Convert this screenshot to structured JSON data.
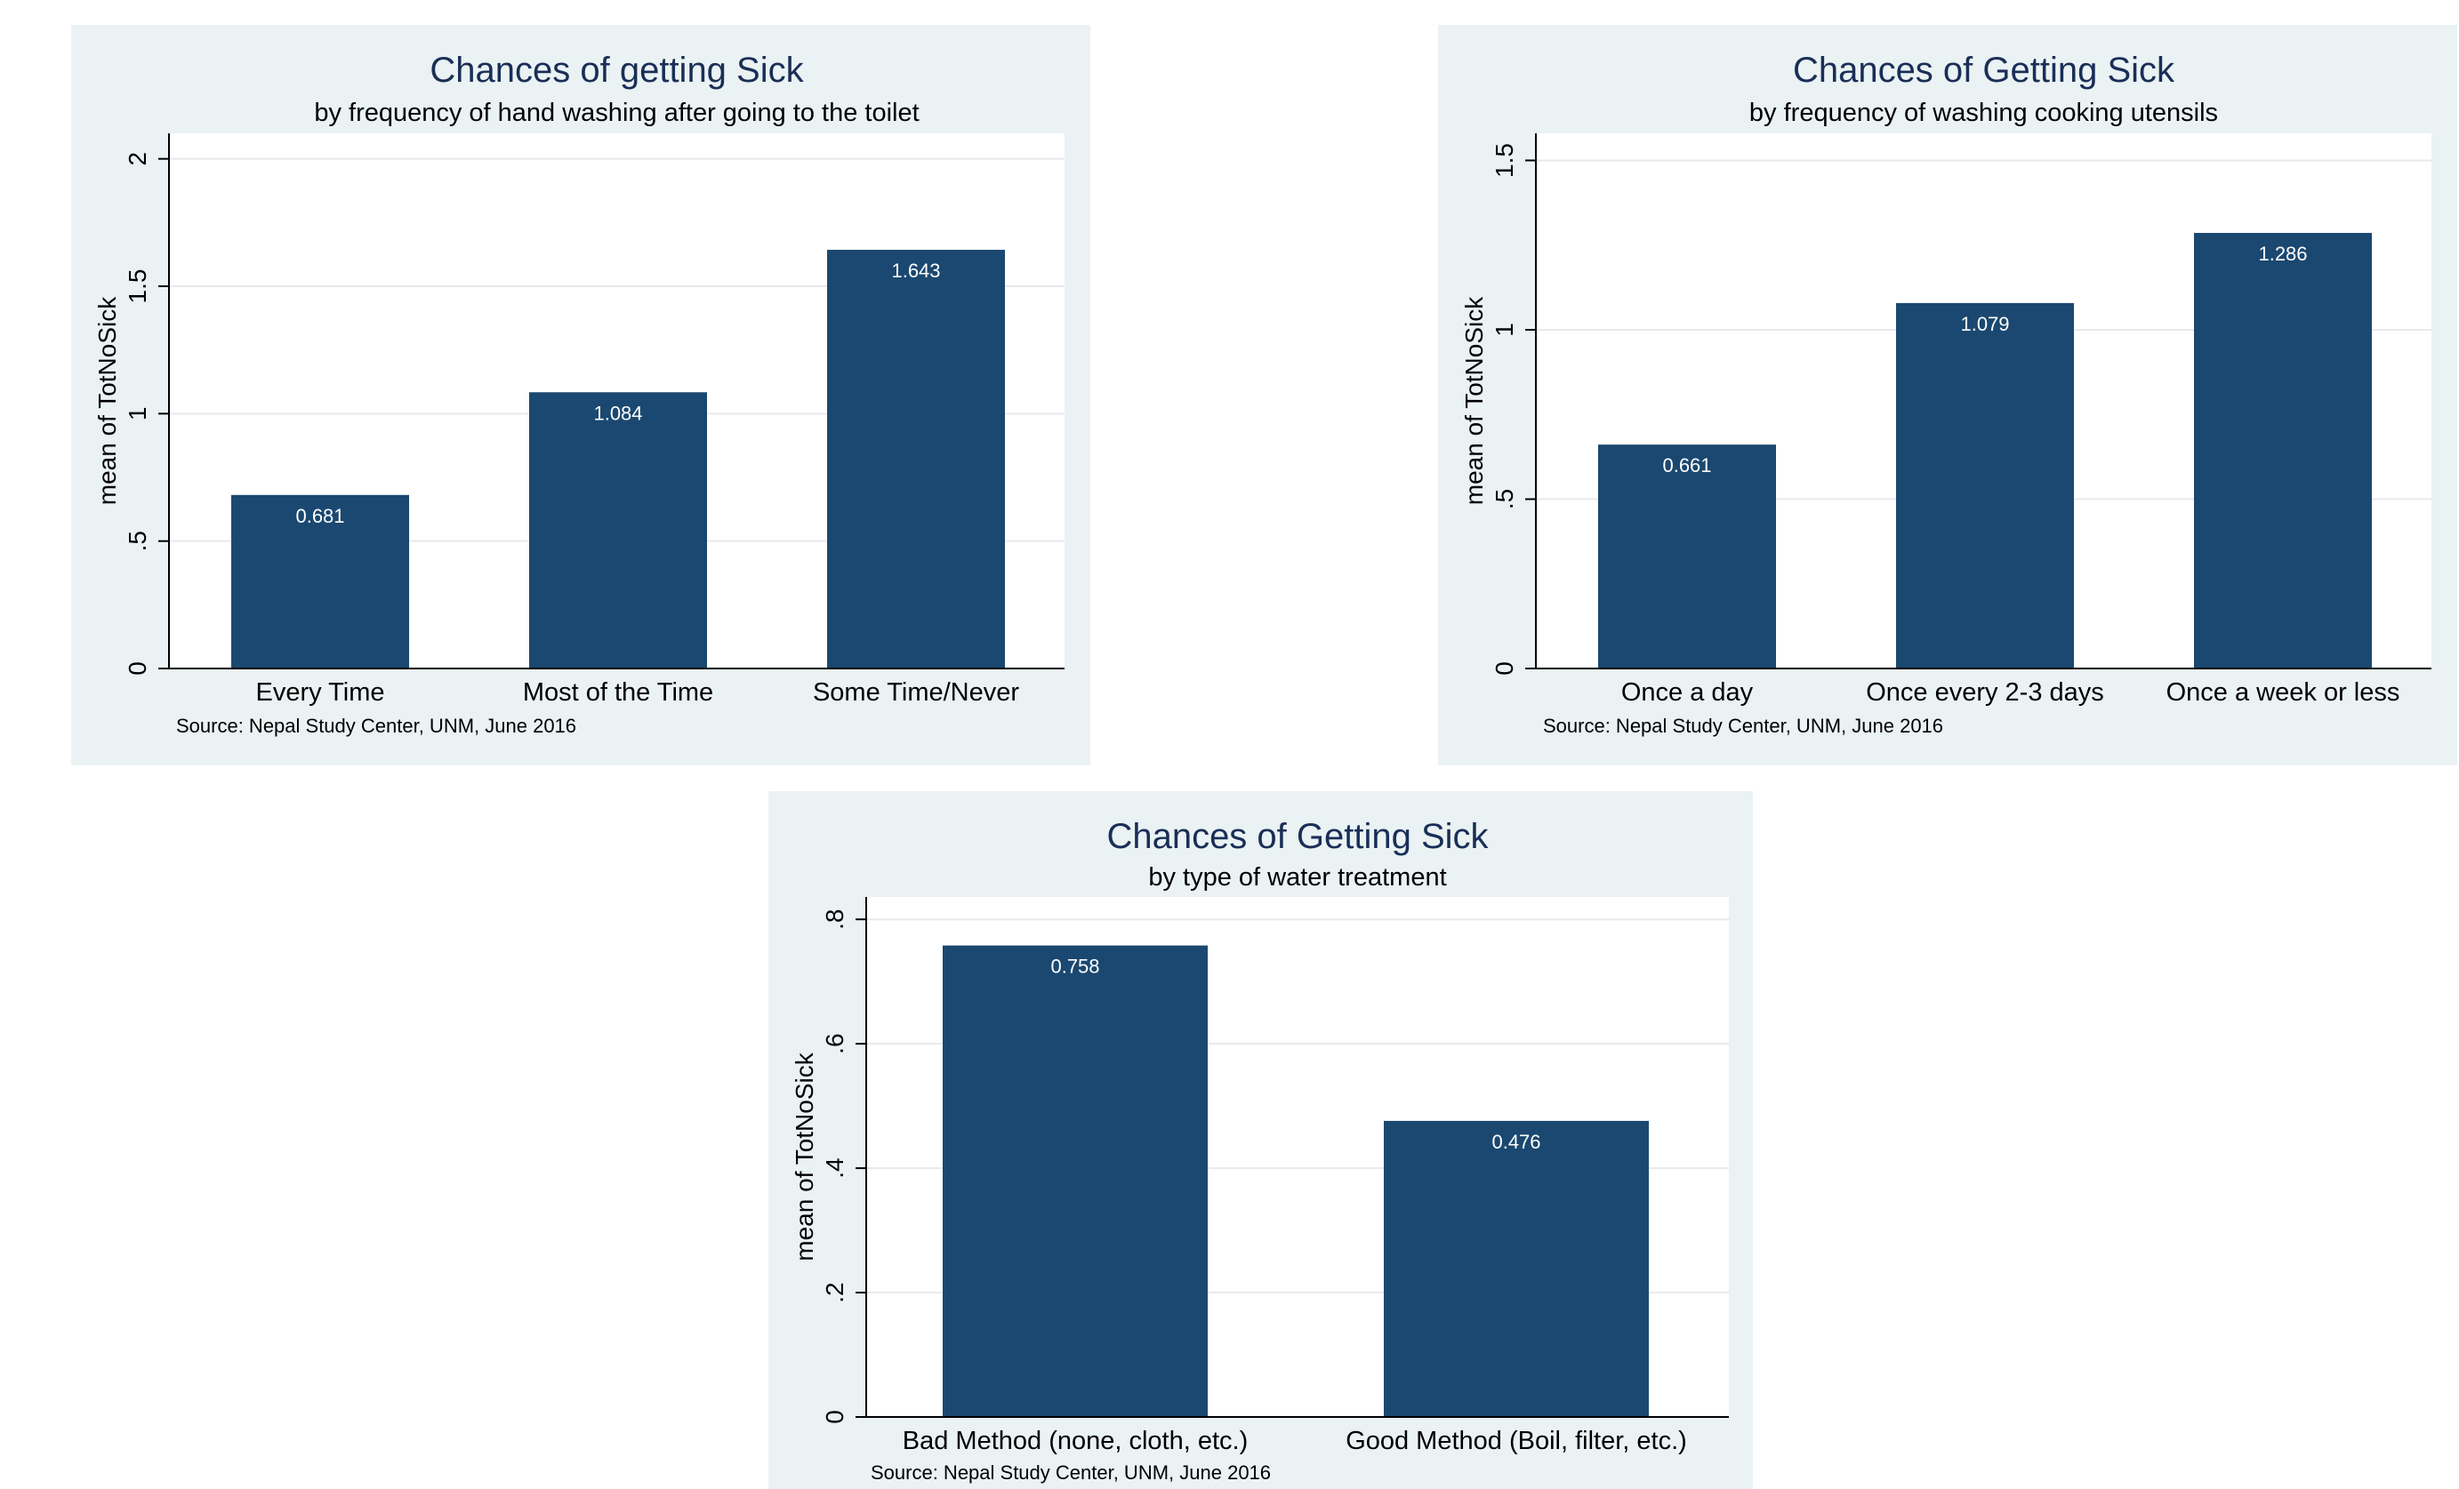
{
  "colors": {
    "panel_background": "#eaf2f3",
    "plot_background": "#ffffff",
    "bar": "#1b4870",
    "gridline": "#e6eaee",
    "title": "#1a2e57",
    "value_label": "#ffffff"
  },
  "chart_data": [
    {
      "type": "bar",
      "title": "Chances of getting Sick",
      "subtitle": "by frequency of hand washing after going to the toilet",
      "xlabel": "",
      "ylabel": "mean of TotNoSick",
      "categories": [
        "Every Time",
        "Most of the Time",
        "Some Time/Never"
      ],
      "values": [
        0.681,
        1.084,
        1.643
      ],
      "value_labels": [
        "0.681",
        "1.084",
        "1.643"
      ],
      "ylim": [
        0,
        2.1
      ],
      "yticks": [
        0,
        0.5,
        1,
        1.5,
        2
      ],
      "ytick_labels": [
        "0",
        ".5",
        "1",
        "1.5",
        "2"
      ],
      "grid": true,
      "note": "Source: Nepal Study Center, UNM, June 2016"
    },
    {
      "type": "bar",
      "title": "Chances of Getting Sick",
      "subtitle": "by frequency of washing cooking utensils",
      "xlabel": "",
      "ylabel": "mean of TotNoSick",
      "categories": [
        "Once a day",
        "Once every 2-3 days",
        "Once a week or less"
      ],
      "values": [
        0.661,
        1.079,
        1.286
      ],
      "value_labels": [
        "0.661",
        "1.079",
        "1.286"
      ],
      "ylim": [
        0,
        1.58
      ],
      "yticks": [
        0,
        0.5,
        1,
        1.5
      ],
      "ytick_labels": [
        "0",
        ".5",
        "1",
        "1.5"
      ],
      "grid": true,
      "note": "Source: Nepal Study Center, UNM, June 2016"
    },
    {
      "type": "bar",
      "title": "Chances of Getting Sick",
      "subtitle": "by type of water treatment",
      "xlabel": "",
      "ylabel": "mean of TotNoSick",
      "categories": [
        "Bad Method (none, cloth, etc.)",
        "Good Method (Boil, filter, etc.)"
      ],
      "values": [
        0.758,
        0.476
      ],
      "value_labels": [
        "0.758",
        "0.476"
      ],
      "ylim": [
        0,
        0.836
      ],
      "yticks": [
        0,
        0.2,
        0.4,
        0.6,
        0.8
      ],
      "ytick_labels": [
        "0",
        ".2",
        ".4",
        ".6",
        ".8"
      ],
      "grid": true,
      "note": "Source: Nepal Study Center, UNM, June 2016"
    }
  ]
}
